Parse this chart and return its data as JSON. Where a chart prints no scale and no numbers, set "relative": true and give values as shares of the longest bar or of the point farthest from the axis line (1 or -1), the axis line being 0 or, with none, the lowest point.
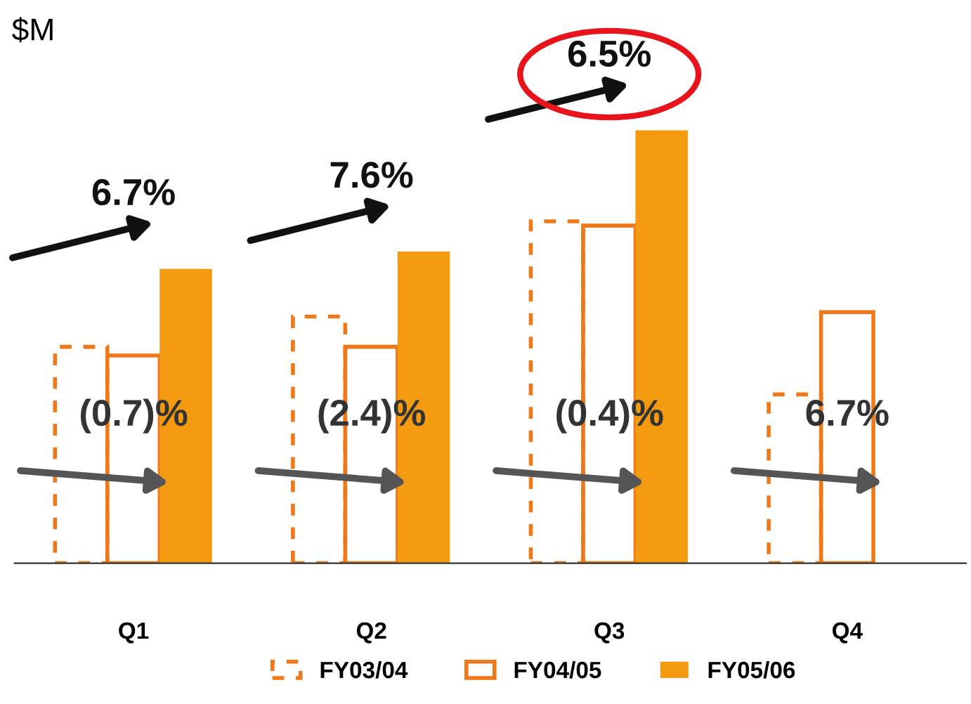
{
  "chart_data": {
    "type": "bar",
    "relative": true,
    "ylabel": "$M",
    "categories": [
      "Q1",
      "Q2",
      "Q3",
      "Q4"
    ],
    "series": [
      {
        "name": "FY03/04",
        "color": "#f07818",
        "line_style": "dotted",
        "values": [
          0.5,
          0.57,
          0.79,
          0.39
        ]
      },
      {
        "name": "FY04/05",
        "color": "#f07818",
        "line_style": "solid",
        "values": [
          0.48,
          0.5,
          0.78,
          0.58
        ]
      },
      {
        "name": "FY05/06",
        "color": "#f39a10",
        "values": [
          0.68,
          0.72,
          1,
          null
        ]
      }
    ],
    "annotations": [
      "6.7%",
      "7.6%",
      "6.5%",
      "(0.7)%",
      "(2.4)%",
      "(0.4)%",
      "6.7%"
    ],
    "legend": "bottom"
  }
}
